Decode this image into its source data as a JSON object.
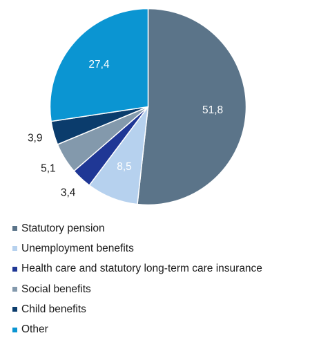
{
  "chart_data": {
    "type": "pie",
    "title": "",
    "start_angle_deg": 0,
    "direction": "clockwise",
    "slices": [
      {
        "label": "Statutory pension",
        "value": 51.8,
        "value_label": "51,8",
        "color": "#5b7489",
        "label_color": "#ffffff",
        "label_position": "inside"
      },
      {
        "label": "Unemployment benefits",
        "value": 8.5,
        "value_label": "8,5",
        "color": "#b6d1ee",
        "label_color": "#ffffff",
        "label_position": "inside"
      },
      {
        "label": "Health care and statutory long-term care insurance",
        "value": 3.4,
        "value_label": "3,4",
        "color": "#1f3795",
        "label_color": "#1a1a1a",
        "label_position": "outside"
      },
      {
        "label": "Social benefits",
        "value": 5.1,
        "value_label": "5,1",
        "color": "#8399ac",
        "label_color": "#1a1a1a",
        "label_position": "outside"
      },
      {
        "label": "Child benefits",
        "value": 3.9,
        "value_label": "3,9",
        "color": "#0b3c6c",
        "label_color": "#1a1a1a",
        "label_position": "outside"
      },
      {
        "label": "Other",
        "value": 27.4,
        "value_label": "27,4",
        "color": "#0b95d2",
        "label_color": "#ffffff",
        "label_position": "inside"
      }
    ],
    "legend_placement": "bottom-left"
  }
}
